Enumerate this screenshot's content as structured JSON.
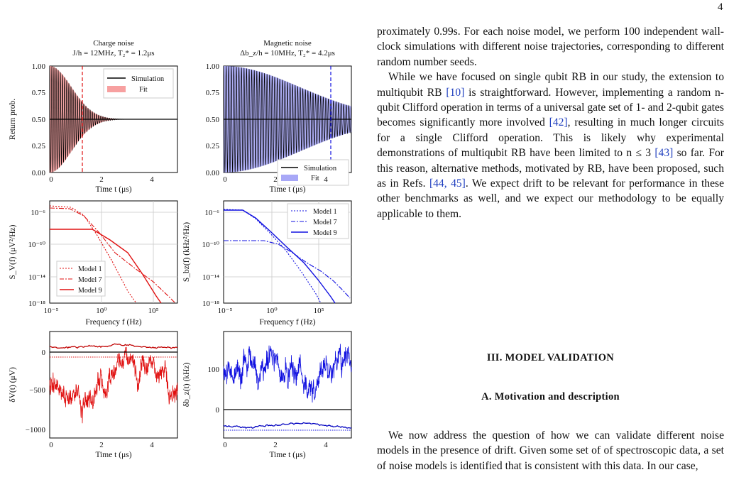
{
  "page_number": "4",
  "figure": {
    "charge_title": "Charge noise",
    "charge_params": "J/h = 12MHz, T₂* = 1.2μs",
    "magnetic_title": "Magnetic noise",
    "magnetic_params": "Δb_z/h = 10MHz, T₂* = 4.2μs",
    "return_ylabel": "Return prob.",
    "time_xlabel": "Time t (μs)",
    "freq_xlabel": "Frequency f (Hz)",
    "sv_ylabel": "S_V(f) (μV²/Hz)",
    "sb_ylabel": "S_bz(f) (kHz²/Hz)",
    "dv_ylabel": "δV(t) (μV)",
    "db_ylabel": "δb_z(t) (kHz)",
    "legend_sim": "Simulation",
    "legend_fit": "Fit",
    "model_labels": [
      "Model 1",
      "Model 7",
      "Model 9"
    ],
    "ticks_prob": [
      "0.00",
      "0.25",
      "0.50",
      "0.75",
      "1.00"
    ],
    "ticks_time": [
      "0",
      "2",
      "4"
    ],
    "ticks_psd": [
      "10⁻¹⁸",
      "10⁻¹⁴",
      "10⁻¹⁰",
      "10⁻⁶"
    ],
    "ticks_freq": [
      "10⁻⁵",
      "10⁰",
      "10⁵"
    ],
    "ticks_dv": [
      "−1000",
      "−500",
      "0"
    ],
    "ticks_db": [
      "0",
      "100"
    ],
    "colors": {
      "charge": "#e01010",
      "magnetic": "#1010e0",
      "fit_charge": "#f7a0a0",
      "fit_magnetic": "#a8a8f7"
    }
  },
  "chart_data": [
    {
      "type": "line",
      "title": "Charge noise",
      "subtitle": "J/h = 12MHz, T₂* = 1.2μs",
      "xlabel": "Time t (μs)",
      "ylabel": "Return prob.",
      "xlim": [
        0,
        5
      ],
      "ylim": [
        0,
        1
      ],
      "series": [
        {
          "name": "Simulation",
          "note": "oscillation 12MHz decaying to 0.5"
        },
        {
          "name": "Fit",
          "T2": 1.2
        }
      ]
    },
    {
      "type": "line",
      "title": "Magnetic noise",
      "subtitle": "Δb_z/h = 10MHz, T₂* = 4.2μs",
      "xlabel": "Time t (μs)",
      "xlim": [
        0,
        5
      ],
      "ylim": [
        0,
        1
      ],
      "series": [
        {
          "name": "Simulation"
        },
        {
          "name": "Fit",
          "T2": 4.2
        }
      ]
    },
    {
      "type": "line",
      "xlabel": "Frequency f (Hz)",
      "ylabel": "S_V(f) (μV²/Hz)",
      "log_x": true,
      "log_y": true,
      "series": [
        {
          "name": "Model 1"
        },
        {
          "name": "Model 7"
        },
        {
          "name": "Model 9"
        }
      ]
    },
    {
      "type": "line",
      "xlabel": "Frequency f (Hz)",
      "ylabel": "S_bz(f) (kHz²/Hz)",
      "log_x": true,
      "log_y": true,
      "series": [
        {
          "name": "Model 1"
        },
        {
          "name": "Model 7"
        },
        {
          "name": "Model 9"
        }
      ]
    },
    {
      "type": "line",
      "xlabel": "Time t (μs)",
      "ylabel": "δV(t) (μV)",
      "xlim": [
        0,
        5
      ],
      "ylim": [
        -1050,
        100
      ]
    },
    {
      "type": "line",
      "xlabel": "Time t (μs)",
      "ylabel": "δb_z(t) (kHz)",
      "xlim": [
        0,
        5
      ],
      "ylim": [
        -60,
        180
      ]
    }
  ],
  "text": {
    "para1_a": "proximately 0.99s. For each noise model, we perform 100 independent wall-clock simulations with different noise trajectories, corresponding to different random number seeds.",
    "para2_a": "While we have focused on single qubit RB in our study, the extension to multiqubit RB ",
    "ref10": "[10]",
    "para2_b": " is straightforward. However, implementing a random n-qubit Clifford operation in terms of a universal gate set of 1- and 2-qubit gates becomes significantly more involved ",
    "ref42": "[42]",
    "para2_c": ", resulting in much longer circuits for a single Clifford operation. This is likely why experimental demonstrations of multiqubit RB have been limited to n ≤ 3 ",
    "ref43": "[43]",
    "para2_d": " so far. For this reason, alternative methods, motivated by RB, have been proposed, such as in Refs. ",
    "ref44": "[44, 45]",
    "para2_e": ". We expect drift to be relevant for performance in these other benchmarks as well, and we expect our methodology to be equally applicable to them.",
    "section_title": "III.   MODEL VALIDATION",
    "subsection_title": "A.   Motivation and description",
    "para3": "We now address the question of how we can validate different noise models in the presence of drift. Given some set of of spectroscopic data, a set of noise models is identified that is consistent with this data. In our case,"
  }
}
